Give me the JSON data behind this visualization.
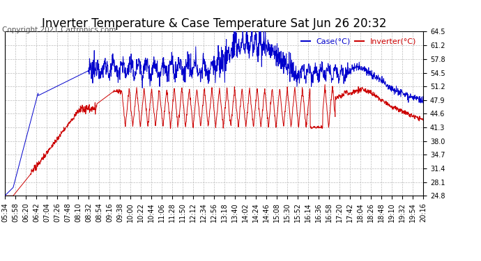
{
  "title": "Inverter Temperature & Case Temperature Sat Jun 26 20:32",
  "copyright": "Copyright 2021 Cartronics.com",
  "legend_case": "Case(°C)",
  "legend_inverter": "Inverter(°C)",
  "ymin": 24.8,
  "ymax": 64.5,
  "yticks": [
    24.8,
    28.1,
    31.4,
    34.7,
    38.0,
    41.3,
    44.6,
    47.9,
    51.2,
    54.5,
    57.8,
    61.2,
    64.5
  ],
  "xtick_labels": [
    "05:34",
    "05:58",
    "06:20",
    "06:42",
    "07:04",
    "07:26",
    "07:48",
    "08:10",
    "08:32",
    "08:54",
    "09:16",
    "09:38",
    "10:00",
    "10:22",
    "10:44",
    "11:06",
    "11:28",
    "11:50",
    "12:12",
    "12:34",
    "12:56",
    "13:18",
    "13:40",
    "14:02",
    "14:24",
    "14:46",
    "15:08",
    "15:30",
    "15:52",
    "16:14",
    "16:36",
    "16:58",
    "17:20",
    "17:42",
    "18:04",
    "18:26",
    "18:48",
    "19:10",
    "19:32",
    "19:54",
    "20:16"
  ],
  "bg_color": "#ffffff",
  "grid_color": "#bbbbbb",
  "case_color": "#0000cc",
  "inverter_color": "#cc0000",
  "title_fontsize": 12,
  "copyright_fontsize": 7.5,
  "tick_fontsize": 7
}
